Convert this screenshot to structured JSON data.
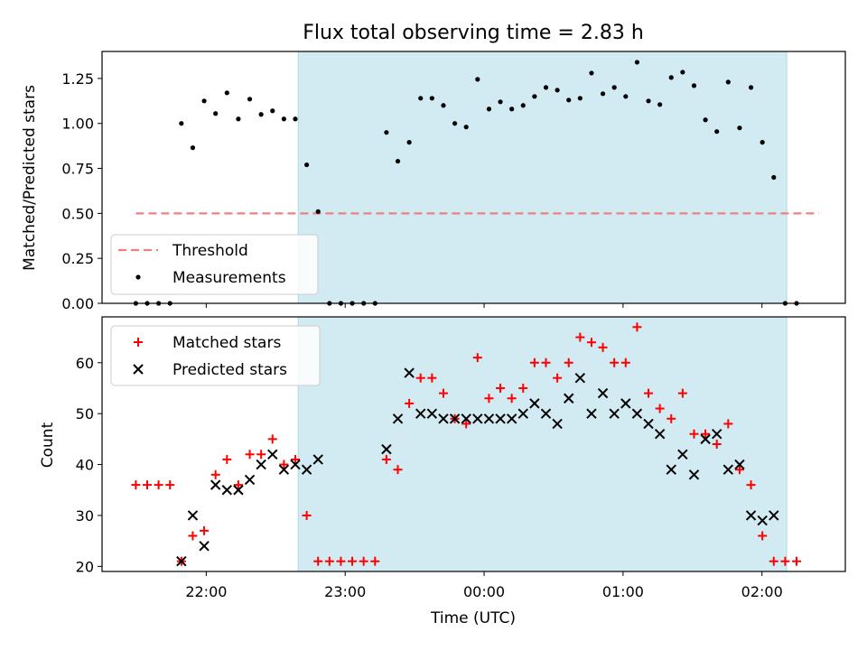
{
  "chart_data": [
    {
      "type": "scatter",
      "title": "Flux total observing time = 2.83 h",
      "xlabel": "",
      "ylabel": "Matched/Predicted stars",
      "ylim": [
        0,
        1.4
      ],
      "yticks": [
        "0.00",
        "0.25",
        "0.50",
        "0.75",
        "1.00",
        "1.25"
      ],
      "ytick_values": [
        0,
        0.25,
        0.5,
        0.75,
        1.0,
        1.25
      ],
      "grid": false,
      "legend_position": "lower-left",
      "highlight_span": {
        "x_start": 22.662,
        "x_end": 26.178,
        "color": "#add8e6"
      },
      "threshold": {
        "name": "Threshold",
        "value": 0.5,
        "x_start": 21.493,
        "x_end": 26.41,
        "color": "#f08080",
        "style": "dashed"
      },
      "series": [
        {
          "name": "Measurements",
          "color": "#000000",
          "points": [
            [
              21.493,
              0.0
            ],
            [
              21.575,
              0.0
            ],
            [
              21.657,
              0.0
            ],
            [
              21.739,
              0.0
            ],
            [
              21.821,
              1.0
            ],
            [
              21.903,
              0.865
            ],
            [
              21.985,
              1.125
            ],
            [
              22.067,
              1.055
            ],
            [
              22.149,
              1.17
            ],
            [
              22.231,
              1.025
            ],
            [
              22.313,
              1.135
            ],
            [
              22.395,
              1.05
            ],
            [
              22.477,
              1.07
            ],
            [
              22.559,
              1.025
            ],
            [
              22.641,
              1.025
            ],
            [
              22.723,
              0.77
            ],
            [
              22.805,
              0.51
            ],
            [
              22.887,
              0.0
            ],
            [
              22.969,
              0.0
            ],
            [
              23.051,
              0.0
            ],
            [
              23.133,
              0.0
            ],
            [
              23.215,
              0.0
            ],
            [
              23.297,
              0.95
            ],
            [
              23.379,
              0.79
            ],
            [
              23.461,
              0.895
            ],
            [
              23.543,
              1.14
            ],
            [
              23.625,
              1.14
            ],
            [
              23.707,
              1.1
            ],
            [
              23.789,
              1.0
            ],
            [
              23.871,
              0.98
            ],
            [
              23.953,
              1.245
            ],
            [
              24.035,
              1.08
            ],
            [
              24.117,
              1.12
            ],
            [
              24.199,
              1.08
            ],
            [
              24.281,
              1.1
            ],
            [
              24.363,
              1.15
            ],
            [
              24.445,
              1.2
            ],
            [
              24.527,
              1.185
            ],
            [
              24.609,
              1.13
            ],
            [
              24.691,
              1.14
            ],
            [
              24.773,
              1.28
            ],
            [
              24.855,
              1.165
            ],
            [
              24.937,
              1.2
            ],
            [
              25.019,
              1.15
            ],
            [
              25.101,
              1.34
            ],
            [
              25.183,
              1.125
            ],
            [
              25.265,
              1.105
            ],
            [
              25.347,
              1.255
            ],
            [
              25.429,
              1.285
            ],
            [
              25.511,
              1.21
            ],
            [
              25.593,
              1.02
            ],
            [
              25.675,
              0.955
            ],
            [
              25.757,
              1.23
            ],
            [
              25.839,
              0.975
            ],
            [
              25.921,
              1.2
            ],
            [
              26.003,
              0.895
            ],
            [
              26.085,
              0.7
            ],
            [
              26.167,
              0.0
            ],
            [
              26.249,
              0.0
            ]
          ]
        }
      ]
    },
    {
      "type": "scatter",
      "title": "",
      "xlabel": "Time (UTC)",
      "ylabel": "Count",
      "xlim": [
        21.25,
        26.6
      ],
      "ylim": [
        19,
        69
      ],
      "xticks": [
        "22:00",
        "23:00",
        "00:00",
        "01:00",
        "02:00"
      ],
      "xtick_values": [
        22,
        23,
        24,
        25,
        26
      ],
      "yticks": [
        "20",
        "30",
        "40",
        "50",
        "60"
      ],
      "ytick_values": [
        20,
        30,
        40,
        50,
        60
      ],
      "grid": false,
      "legend_position": "upper-left",
      "highlight_span": {
        "x_start": 22.662,
        "x_end": 26.178,
        "color": "#add8e6"
      },
      "series": [
        {
          "name": "Matched stars",
          "marker": "+",
          "color": "#ff0000",
          "points": [
            [
              21.493,
              36
            ],
            [
              21.575,
              36
            ],
            [
              21.657,
              36
            ],
            [
              21.739,
              36
            ],
            [
              21.821,
              21
            ],
            [
              21.903,
              26
            ],
            [
              21.985,
              27
            ],
            [
              22.067,
              38
            ],
            [
              22.149,
              41
            ],
            [
              22.231,
              36
            ],
            [
              22.313,
              42
            ],
            [
              22.395,
              42
            ],
            [
              22.477,
              45
            ],
            [
              22.559,
              40
            ],
            [
              22.641,
              41
            ],
            [
              22.723,
              30
            ],
            [
              22.805,
              21
            ],
            [
              22.887,
              21
            ],
            [
              22.969,
              21
            ],
            [
              23.051,
              21
            ],
            [
              23.133,
              21
            ],
            [
              23.215,
              21
            ],
            [
              23.297,
              41
            ],
            [
              23.379,
              39
            ],
            [
              23.461,
              52
            ],
            [
              23.543,
              57
            ],
            [
              23.625,
              57
            ],
            [
              23.707,
              54
            ],
            [
              23.789,
              49
            ],
            [
              23.871,
              48
            ],
            [
              23.953,
              61
            ],
            [
              24.035,
              53
            ],
            [
              24.117,
              55
            ],
            [
              24.199,
              53
            ],
            [
              24.281,
              55
            ],
            [
              24.363,
              60
            ],
            [
              24.445,
              60
            ],
            [
              24.527,
              57
            ],
            [
              24.609,
              60
            ],
            [
              24.691,
              65
            ],
            [
              24.773,
              64
            ],
            [
              24.855,
              63
            ],
            [
              24.937,
              60
            ],
            [
              25.019,
              60
            ],
            [
              25.101,
              67
            ],
            [
              25.183,
              54
            ],
            [
              25.265,
              51
            ],
            [
              25.347,
              49
            ],
            [
              25.429,
              54
            ],
            [
              25.511,
              46
            ],
            [
              25.593,
              46
            ],
            [
              25.675,
              44
            ],
            [
              25.757,
              48
            ],
            [
              25.839,
              39
            ],
            [
              25.921,
              36
            ],
            [
              26.003,
              26
            ],
            [
              26.085,
              21
            ],
            [
              26.167,
              21
            ],
            [
              26.249,
              21
            ]
          ]
        },
        {
          "name": "Predicted stars",
          "marker": "x",
          "color": "#000000",
          "points": [
            [
              21.821,
              21
            ],
            [
              21.903,
              30
            ],
            [
              21.985,
              24
            ],
            [
              22.067,
              36
            ],
            [
              22.149,
              35
            ],
            [
              22.231,
              35
            ],
            [
              22.313,
              37
            ],
            [
              22.395,
              40
            ],
            [
              22.477,
              42
            ],
            [
              22.559,
              39
            ],
            [
              22.641,
              40
            ],
            [
              22.723,
              39
            ],
            [
              22.805,
              41
            ],
            [
              23.297,
              43
            ],
            [
              23.379,
              49
            ],
            [
              23.461,
              58
            ],
            [
              23.543,
              50
            ],
            [
              23.625,
              50
            ],
            [
              23.707,
              49
            ],
            [
              23.789,
              49
            ],
            [
              23.871,
              49
            ],
            [
              23.953,
              49
            ],
            [
              24.035,
              49
            ],
            [
              24.117,
              49
            ],
            [
              24.199,
              49
            ],
            [
              24.281,
              50
            ],
            [
              24.363,
              52
            ],
            [
              24.445,
              50
            ],
            [
              24.527,
              48
            ],
            [
              24.609,
              53
            ],
            [
              24.691,
              57
            ],
            [
              24.773,
              50
            ],
            [
              24.855,
              54
            ],
            [
              24.937,
              50
            ],
            [
              25.019,
              52
            ],
            [
              25.101,
              50
            ],
            [
              25.183,
              48
            ],
            [
              25.265,
              46
            ],
            [
              25.347,
              39
            ],
            [
              25.429,
              42
            ],
            [
              25.511,
              38
            ],
            [
              25.593,
              45
            ],
            [
              25.675,
              46
            ],
            [
              25.757,
              39
            ],
            [
              25.839,
              40
            ],
            [
              25.921,
              30
            ],
            [
              26.003,
              29
            ],
            [
              26.085,
              30
            ]
          ]
        }
      ]
    }
  ]
}
